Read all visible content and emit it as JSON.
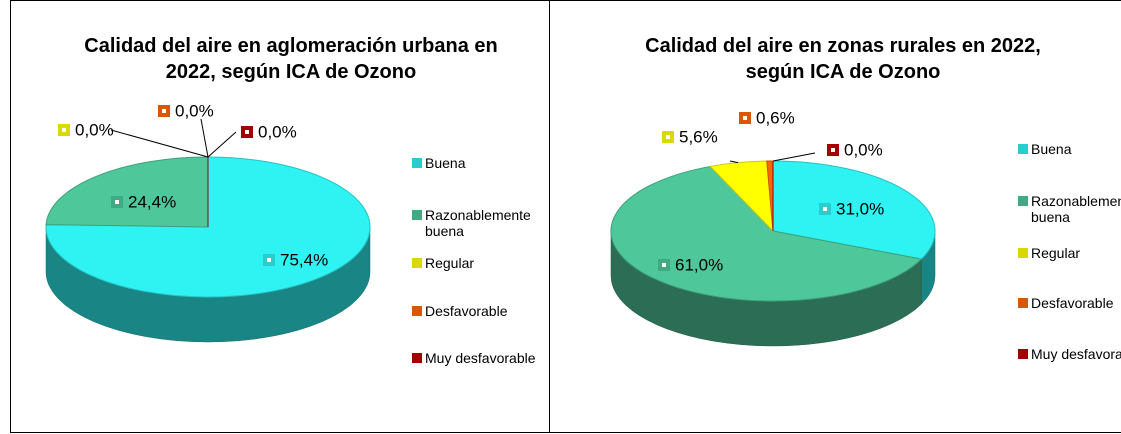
{
  "chart_data": [
    {
      "type": "pie",
      "title": "Calidad del aire en aglomeración urbana en 2022, según ICA de Ozono",
      "categories": [
        "Buena",
        "Razonablemente buena",
        "Regular",
        "Desfavorable",
        "Muy desfavorable"
      ],
      "values": [
        75.4,
        24.4,
        0.0,
        0.0,
        0.0
      ],
      "value_labels": [
        "75,4%",
        "24,4%",
        "0,0%",
        "0,0%",
        "0,0%"
      ],
      "colors": [
        "#2ff2f2",
        "#4ec89a",
        "#ffff00",
        "#ff6600",
        "#c00000"
      ]
    },
    {
      "type": "pie",
      "title": "Calidad del aire en zonas rurales en 2022, según ICA de Ozono",
      "categories": [
        "Buena",
        "Razonablemente buena",
        "Regular",
        "Desfavorable",
        "Muy desfavorable"
      ],
      "values": [
        31.0,
        61.0,
        5.6,
        0.6,
        0.0
      ],
      "value_labels": [
        "31,0%",
        "61,0%",
        "5,6%",
        "0,6%",
        "0,0%"
      ],
      "colors": [
        "#2ff2f2",
        "#4ec89a",
        "#ffff00",
        "#ff6600",
        "#c00000"
      ]
    }
  ]
}
